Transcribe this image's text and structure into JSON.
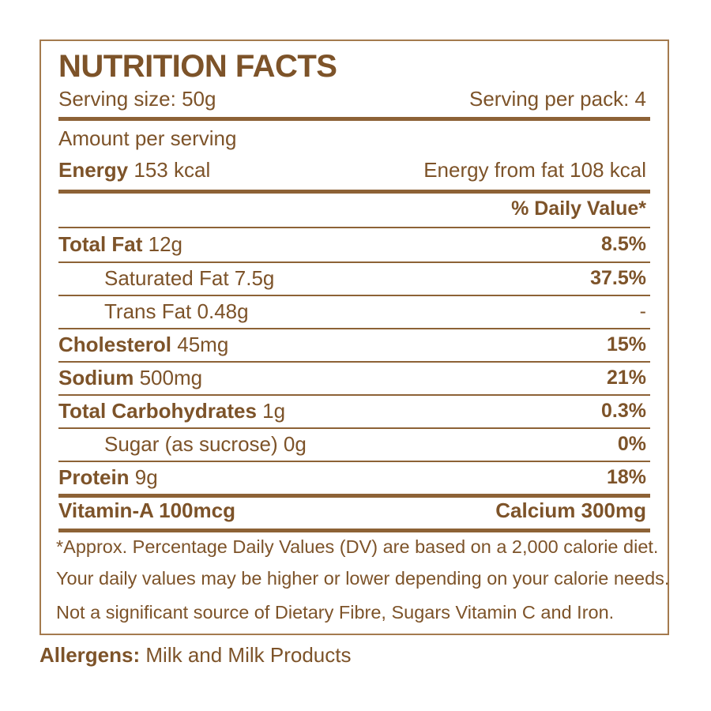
{
  "label": {
    "title": "NUTRITION FACTS",
    "serving_size": "Serving size: 50g",
    "serving_per_pack": "Serving per pack: 4",
    "amount_per_serving": "Amount per serving",
    "energy_label": "Energy",
    "energy_value": " 153 kcal",
    "energy_from_fat": "Energy from fat 108 kcal",
    "daily_value_header": "% Daily Value*",
    "rows": [
      {
        "name": "Total Fat",
        "amount": " 12g",
        "dv": "8.5%"
      },
      {
        "name": "Saturated Fat 7.5g",
        "amount": "",
        "dv": "37.5%"
      },
      {
        "name": "Trans Fat 0.48g",
        "amount": "",
        "dv": "-"
      },
      {
        "name": "Cholesterol",
        "amount": " 45mg",
        "dv": "15%"
      },
      {
        "name": "Sodium",
        "amount": " 500mg",
        "dv": "21%"
      },
      {
        "name": "Total Carbohydrates",
        "amount": " 1g",
        "dv": "0.3%"
      },
      {
        "name": "Sugar (as sucrose) 0g",
        "amount": "",
        "dv": "0%"
      },
      {
        "name": "Protein",
        "amount": " 9g",
        "dv": "18%"
      }
    ],
    "vitamin_a": "Vitamin-A 100mcg",
    "calcium": "Calcium 300mg",
    "footnote_1": "*Approx. Percentage Daily Values (DV) are based on a 2,000 calorie diet.",
    "footnote_2": "Your daily values may be higher or lower depending on your calorie needs.",
    "footnote_3": "Not a significant source of Dietary Fibre, Sugars Vitamin C and Iron."
  },
  "allergens": {
    "label": "Allergens:",
    "value": " Milk and Milk Products"
  },
  "colors": {
    "text": "#7d5329",
    "border": "#a47a4e",
    "rule": "#8d6236"
  }
}
